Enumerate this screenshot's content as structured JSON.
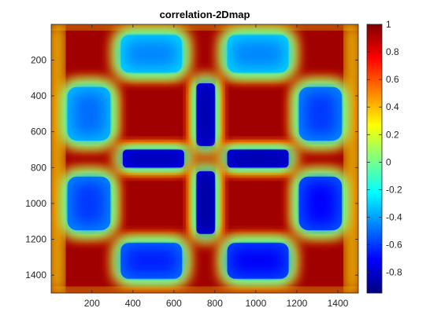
{
  "chart_data": {
    "type": "heatmap",
    "title": "correlation-2Dmap",
    "xlabel": "",
    "ylabel": "",
    "colormap": "jet",
    "xlim": [
      1,
      1500
    ],
    "ylim": [
      1,
      1500
    ],
    "y_direction": "reverse",
    "x_ticks": [
      200,
      400,
      600,
      800,
      1000,
      1200,
      1400
    ],
    "y_ticks": [
      200,
      400,
      600,
      800,
      1000,
      1200,
      1400
    ],
    "clim": [
      -0.95,
      1
    ],
    "colorbar_ticks": [
      1,
      0.8,
      0.6,
      0.4,
      0.2,
      0,
      -0.2,
      -0.4,
      -0.6,
      -0.8
    ],
    "colorbar_tick_labels": [
      "1",
      "0.8",
      "0.6",
      "0.4",
      "0.2",
      "0",
      "-0.2",
      "-0.4",
      "-0.6",
      "-0.8"
    ],
    "grid": false,
    "regions": [
      {
        "x": [
          340,
          640
        ],
        "y": [
          60,
          270
        ],
        "value": -0.45
      },
      {
        "x": [
          860,
          1160
        ],
        "y": [
          60,
          270
        ],
        "value": -0.45
      },
      {
        "x": [
          80,
          290
        ],
        "y": [
          350,
          650
        ],
        "value": -0.5
      },
      {
        "x": [
          1210,
          1420
        ],
        "y": [
          350,
          650
        ],
        "value": -0.6
      },
      {
        "x": [
          710,
          800
        ],
        "y": [
          330,
          680
        ],
        "value": -0.9
      },
      {
        "x": [
          350,
          650
        ],
        "y": [
          700,
          800
        ],
        "value": -0.88
      },
      {
        "x": [
          860,
          1160
        ],
        "y": [
          700,
          800
        ],
        "value": -0.9
      },
      {
        "x": [
          80,
          290
        ],
        "y": [
          850,
          1150
        ],
        "value": -0.6
      },
      {
        "x": [
          1210,
          1420
        ],
        "y": [
          850,
          1150
        ],
        "value": -0.7
      },
      {
        "x": [
          710,
          800
        ],
        "y": [
          820,
          1170
        ],
        "value": -0.92
      },
      {
        "x": [
          340,
          640
        ],
        "y": [
          1220,
          1420
        ],
        "value": -0.65
      },
      {
        "x": [
          860,
          1160
        ],
        "y": [
          1220,
          1420
        ],
        "value": -0.72
      }
    ],
    "side_bands": [
      {
        "axis": "x",
        "range": [
          0,
          60
        ],
        "y": [
          0,
          1500
        ],
        "value": 0.3
      },
      {
        "axis": "x",
        "range": [
          1440,
          1500
        ],
        "y": [
          0,
          1500
        ],
        "value": 0.3
      },
      {
        "axis": "y",
        "range": [
          0,
          30
        ],
        "x": [
          0,
          1500
        ],
        "value": 0.3
      },
      {
        "axis": "y",
        "range": [
          1470,
          1500
        ],
        "x": [
          0,
          1500
        ],
        "value": 0.3
      }
    ]
  }
}
